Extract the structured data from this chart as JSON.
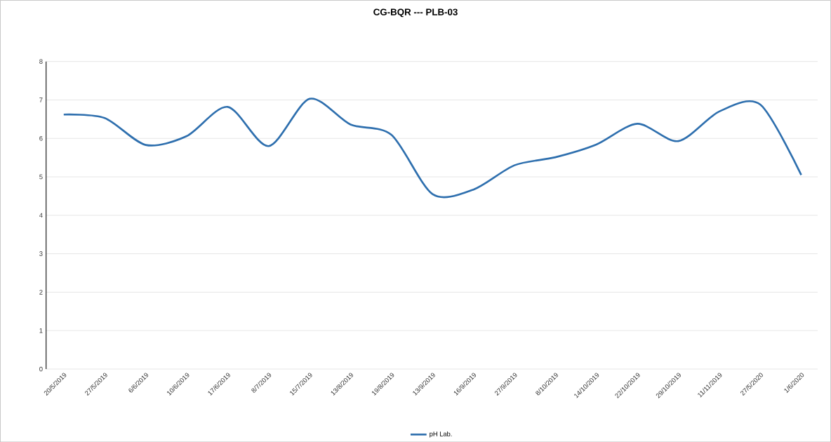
{
  "chart_data": {
    "type": "line",
    "title": "CG-BQR --- PLB-03",
    "categories": [
      "20/5/2019",
      "27/5/2019",
      "6/6/2019",
      "10/6/2019",
      "17/6/2019",
      "8/7/2019",
      "15/7/2019",
      "13/8/2019",
      "19/8/2019",
      "13/9/2019",
      "16/9/2019",
      "27/9/2019",
      "8/10/2019",
      "14/10/2019",
      "22/10/2019",
      "29/10/2019",
      "11/11/2019",
      "27/5/2020",
      "1/6/2020"
    ],
    "series": [
      {
        "name": "pH Lab.",
        "color": "#2e6fae",
        "values": [
          6.62,
          6.53,
          5.83,
          6.06,
          6.82,
          5.8,
          7.03,
          6.36,
          6.09,
          4.55,
          4.67,
          5.3,
          5.51,
          5.84,
          6.38,
          5.93,
          6.7,
          6.88,
          5.05
        ]
      }
    ],
    "ylim": [
      0,
      8
    ],
    "yticks": [
      0,
      1,
      2,
      3,
      4,
      5,
      6,
      7,
      8
    ],
    "grid": "y",
    "legend": "bottom"
  }
}
